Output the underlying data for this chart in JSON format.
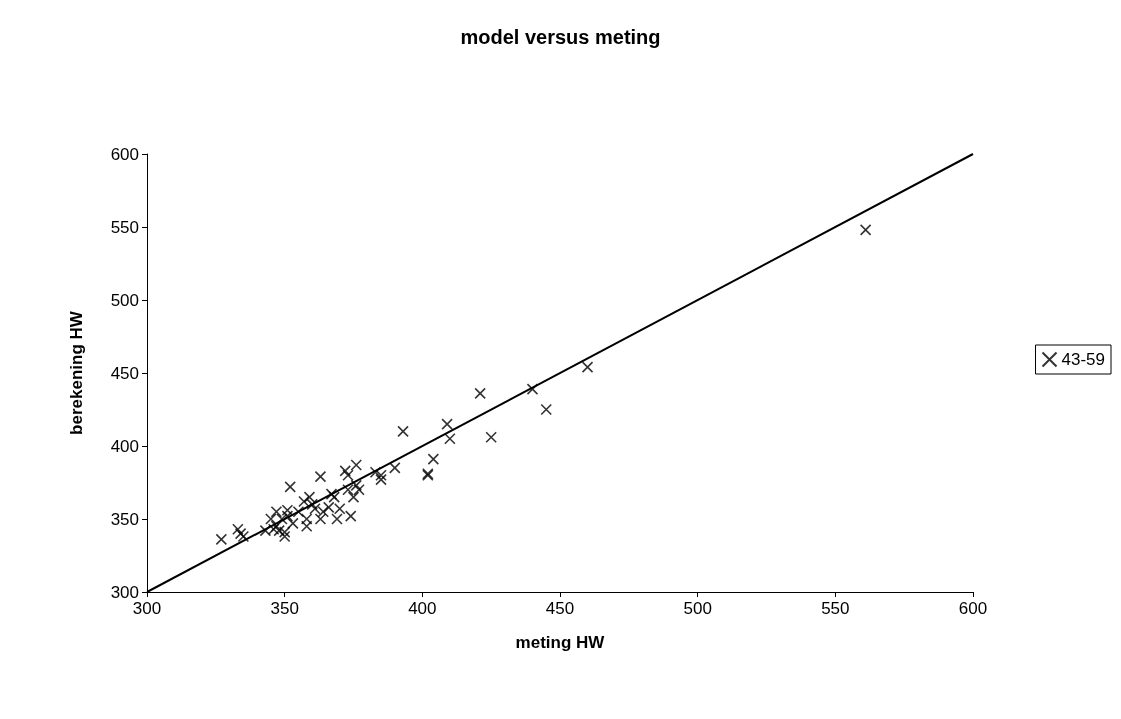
{
  "chart_data": {
    "type": "scatter",
    "title": "model versus meting",
    "xlabel": "meting HW",
    "ylabel": "berekening HW",
    "xlim": [
      300,
      600
    ],
    "xticks": [
      300,
      350,
      400,
      450,
      500,
      550,
      600
    ],
    "ylim": [
      300,
      600
    ],
    "yticks": [
      300,
      350,
      400,
      450,
      500,
      550,
      600
    ],
    "grid": false,
    "legend": "right",
    "marker": "cross",
    "series": [
      {
        "name": "43-59",
        "color": "#000000",
        "x": [
          327,
          333,
          334,
          335,
          343,
          345,
          346,
          347,
          347,
          348,
          349,
          350,
          350,
          351,
          351,
          352,
          353,
          355,
          357,
          358,
          358,
          359,
          360,
          361,
          363,
          363,
          364,
          366,
          367,
          368,
          369,
          370,
          372,
          373,
          373,
          374,
          375,
          376,
          376,
          377,
          383,
          385,
          385,
          390,
          393,
          402,
          402,
          404,
          409,
          410,
          421,
          425,
          440,
          445,
          460,
          561
        ],
        "values": [
          336,
          343,
          340,
          338,
          342,
          350,
          343,
          345,
          355,
          342,
          350,
          341,
          338,
          352,
          356,
          372,
          347,
          355,
          362,
          345,
          350,
          365,
          360,
          357,
          350,
          379,
          355,
          358,
          367,
          365,
          350,
          357,
          383,
          380,
          370,
          352,
          365,
          387,
          373,
          370,
          382,
          377,
          380,
          385,
          410,
          380,
          381,
          391,
          415,
          405,
          436,
          406,
          439,
          425,
          454,
          548
        ]
      },
      {
        "type": "line",
        "color": "#000000",
        "x": [
          300,
          600
        ],
        "values": [
          300,
          600
        ],
        "marker": "none"
      }
    ]
  }
}
